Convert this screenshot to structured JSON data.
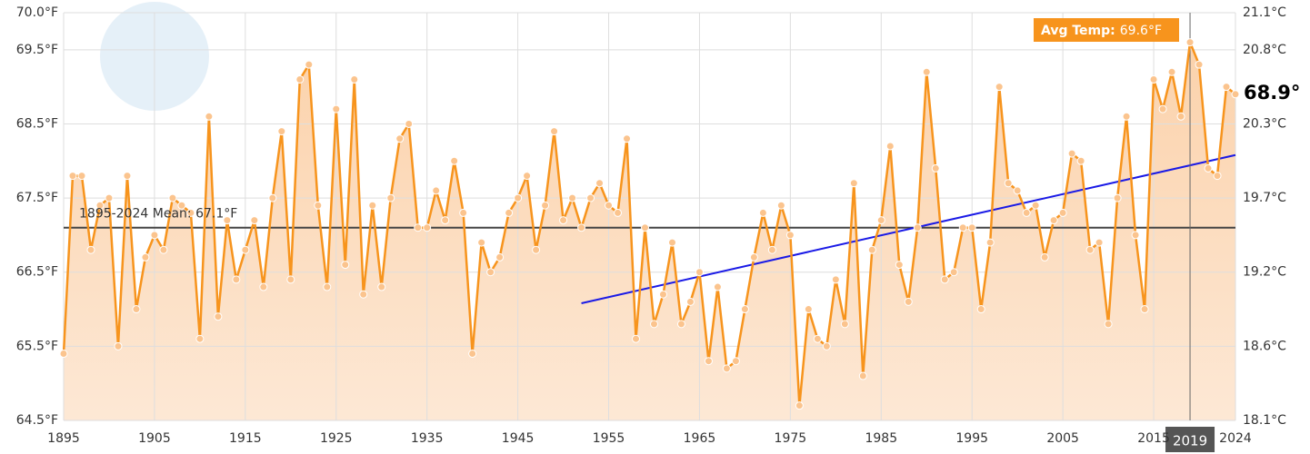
{
  "chart_data": {
    "type": "line",
    "x": [
      1895,
      1896,
      1897,
      1898,
      1899,
      1900,
      1901,
      1902,
      1903,
      1904,
      1905,
      1906,
      1907,
      1908,
      1909,
      1910,
      1911,
      1912,
      1913,
      1914,
      1915,
      1916,
      1917,
      1918,
      1919,
      1920,
      1921,
      1922,
      1923,
      1924,
      1925,
      1926,
      1927,
      1928,
      1929,
      1930,
      1931,
      1932,
      1933,
      1934,
      1935,
      1936,
      1937,
      1938,
      1939,
      1940,
      1941,
      1942,
      1943,
      1944,
      1945,
      1946,
      1947,
      1948,
      1949,
      1950,
      1951,
      1952,
      1953,
      1954,
      1955,
      1956,
      1957,
      1958,
      1959,
      1960,
      1961,
      1962,
      1963,
      1964,
      1965,
      1966,
      1967,
      1968,
      1969,
      1970,
      1971,
      1972,
      1973,
      1974,
      1975,
      1976,
      1977,
      1978,
      1979,
      1980,
      1981,
      1982,
      1983,
      1984,
      1985,
      1986,
      1987,
      1988,
      1989,
      1990,
      1991,
      1992,
      1993,
      1994,
      1995,
      1996,
      1997,
      1998,
      1999,
      2000,
      2001,
      2002,
      2003,
      2004,
      2005,
      2006,
      2007,
      2008,
      2009,
      2010,
      2011,
      2012,
      2013,
      2014,
      2015,
      2016,
      2017,
      2018,
      2019,
      2020,
      2021,
      2022,
      2023,
      2024
    ],
    "series": [
      {
        "color": "#f7941d",
        "values": [
          65.4,
          67.8,
          67.8,
          66.8,
          67.4,
          67.5,
          65.5,
          67.8,
          66.0,
          66.7,
          67.0,
          66.8,
          67.5,
          67.4,
          67.3,
          65.6,
          68.6,
          65.9,
          67.2,
          66.4,
          66.8,
          67.2,
          66.3,
          67.5,
          68.4,
          66.4,
          69.1,
          69.3,
          67.4,
          66.3,
          68.7,
          66.6,
          69.1,
          66.2,
          67.4,
          66.3,
          67.5,
          68.3,
          68.5,
          67.1,
          67.1,
          67.6,
          67.2,
          68.0,
          67.3,
          65.4,
          66.9,
          66.5,
          66.7,
          67.3,
          67.5,
          67.8,
          66.8,
          67.4,
          68.4,
          67.2,
          67.5,
          67.1,
          67.5,
          67.7,
          67.4,
          67.3,
          68.3,
          65.6,
          67.1,
          65.8,
          66.2,
          66.9,
          65.8,
          66.1,
          66.5,
          65.3,
          66.3,
          65.2,
          65.3,
          66.0,
          66.7,
          67.3,
          66.8,
          67.4,
          67.0,
          64.7,
          66.0,
          65.6,
          65.5,
          66.4,
          65.8,
          67.7,
          65.1,
          66.8,
          67.2,
          68.2,
          66.6,
          66.1,
          67.1,
          69.2,
          67.9,
          66.4,
          66.5,
          67.1,
          67.1,
          66.0,
          66.9,
          69.0,
          67.7,
          67.6,
          67.3,
          67.4,
          66.7,
          67.2,
          67.3,
          68.1,
          68.0,
          66.8,
          66.9,
          65.8,
          67.5,
          68.6,
          67.0,
          66.0,
          69.1,
          68.7,
          69.2,
          68.6,
          69.6,
          69.3,
          67.9,
          67.8,
          69.0,
          68.9
        ]
      }
    ],
    "xlim": [
      1895,
      2024
    ],
    "xticks": [
      1895,
      1905,
      1915,
      1925,
      1935,
      1945,
      1955,
      1965,
      1975,
      1985,
      1995,
      2005,
      2015,
      2024
    ],
    "ylim": [
      64.5,
      70
    ],
    "yticks": [
      {
        "value": 64.5,
        "label": "64.5°F"
      },
      {
        "value": 65.5,
        "label": "65.5°F"
      },
      {
        "value": 66.5,
        "label": "66.5°F"
      },
      {
        "value": 67.5,
        "label": "67.5°F"
      },
      {
        "value": 68.5,
        "label": "68.5°F"
      },
      {
        "value": 69.5,
        "label": "69.5°F"
      },
      {
        "value": 70,
        "label": "70.0°F"
      }
    ],
    "y2lim": [
      18.056,
      21.111
    ],
    "y2ticks": [
      {
        "value": 18.056,
        "label": "18.1°C"
      },
      {
        "value": 18.611,
        "label": "18.6°C"
      },
      {
        "value": 19.167,
        "label": "19.2°C"
      },
      {
        "value": 19.722,
        "label": "19.7°C"
      },
      {
        "value": 20.278,
        "label": "20.3°C"
      },
      {
        "value": 20.833,
        "label": "20.8°C"
      },
      {
        "value": 21.111,
        "label": "21.1°C"
      }
    ],
    "grid": true,
    "mean": 67.1,
    "mean_label": "1895-2024 Mean: 67.1°F",
    "trend": {
      "x": [
        1952,
        2024
      ],
      "values": [
        66.08,
        68.08
      ],
      "color": "#1a1ae6"
    },
    "tooltip": {
      "label": "Avg Temp:",
      "value": "69.6°F",
      "year": 2019
    },
    "latest_label": "68.9°"
  }
}
